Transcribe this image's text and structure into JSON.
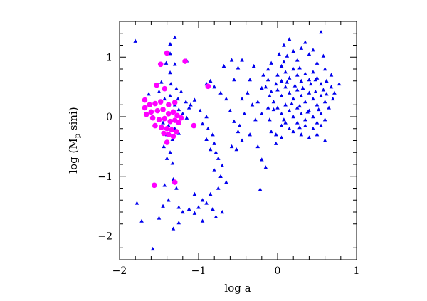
{
  "chart_data": {
    "type": "scatter",
    "title": "",
    "xlabel": "log a",
    "ylabel_main": "log (M",
    "ylabel_sub": "p",
    "ylabel_tail": " sini)",
    "xlim": [
      -2,
      1
    ],
    "ylim": [
      -2.4,
      1.6
    ],
    "x_ticks": [
      -2,
      -1,
      0,
      1
    ],
    "x_tick_labels": [
      "−2",
      "−1",
      "0",
      "1"
    ],
    "y_ticks": [
      -2,
      -1,
      0,
      1
    ],
    "y_tick_labels": [
      "−2",
      "−1",
      "0",
      "1"
    ],
    "grid": false,
    "legend": "none",
    "series": [
      {
        "marker": "triangle",
        "color": "#0000ee",
        "points": [
          [
            -1.8,
            1.27
          ],
          [
            -1.36,
            1.22
          ],
          [
            -1.3,
            1.33
          ],
          [
            -1.36,
            1.06
          ],
          [
            -1.41,
            0.9
          ],
          [
            -1.3,
            0.88
          ],
          [
            -1.15,
            0.94
          ],
          [
            -1.36,
            0.74
          ],
          [
            -1.47,
            0.58
          ],
          [
            -1.5,
            0.42
          ],
          [
            -1.63,
            0.38
          ],
          [
            -1.36,
            0.35
          ],
          [
            -1.26,
            0.3
          ],
          [
            -1.16,
            0.25
          ],
          [
            -1.12,
            0.15
          ],
          [
            -1.35,
            0.55
          ],
          [
            -1.28,
            0.47
          ],
          [
            -1.22,
            0.42
          ],
          [
            -1.43,
            0.3
          ],
          [
            -1.3,
            0.2
          ],
          [
            -1.25,
            0.12
          ],
          [
            -1.2,
            0.05
          ],
          [
            -1.15,
            -0.02
          ],
          [
            -1.45,
            -0.1
          ],
          [
            -1.38,
            -0.15
          ],
          [
            -1.3,
            -0.2
          ],
          [
            -1.25,
            -0.28
          ],
          [
            -1.4,
            -0.3
          ],
          [
            -1.33,
            -0.38
          ],
          [
            -1.44,
            -0.5
          ],
          [
            -1.36,
            -0.6
          ],
          [
            -1.4,
            -0.7
          ],
          [
            -1.33,
            -0.78
          ],
          [
            -1.43,
            -1.15
          ],
          [
            -1.32,
            -1.05
          ],
          [
            -1.28,
            -1.2
          ],
          [
            -1.38,
            -1.4
          ],
          [
            -1.45,
            -1.5
          ],
          [
            -1.25,
            -1.52
          ],
          [
            -1.2,
            -1.6
          ],
          [
            -1.12,
            -1.55
          ],
          [
            -1.05,
            -1.62
          ],
          [
            -1.0,
            -1.52
          ],
          [
            -0.95,
            -1.75
          ],
          [
            -1.25,
            -1.78
          ],
          [
            -1.32,
            -1.88
          ],
          [
            -1.5,
            -1.7
          ],
          [
            -1.78,
            -1.45
          ],
          [
            -1.72,
            -1.75
          ],
          [
            -1.58,
            -2.22
          ],
          [
            -1.1,
            0.2
          ],
          [
            -1.05,
            0.28
          ],
          [
            -0.98,
            0.1
          ],
          [
            -0.9,
            0.0
          ],
          [
            -0.95,
            -0.12
          ],
          [
            -0.88,
            -0.2
          ],
          [
            -0.82,
            -0.3
          ],
          [
            -0.9,
            -0.38
          ],
          [
            -0.8,
            -0.45
          ],
          [
            -0.85,
            -0.55
          ],
          [
            -0.78,
            -0.6
          ],
          [
            -0.75,
            -0.7
          ],
          [
            -0.7,
            -0.82
          ],
          [
            -0.8,
            -0.9
          ],
          [
            -0.72,
            -1.0
          ],
          [
            -0.65,
            -1.1
          ],
          [
            -0.75,
            -1.2
          ],
          [
            -0.85,
            -1.3
          ],
          [
            -0.9,
            -1.45
          ],
          [
            -0.82,
            -1.55
          ],
          [
            -0.7,
            -1.6
          ],
          [
            -0.78,
            -1.68
          ],
          [
            -0.95,
            -1.4
          ],
          [
            -1.05,
            -1.3
          ],
          [
            -0.9,
            0.55
          ],
          [
            -0.85,
            0.6
          ],
          [
            -0.8,
            0.5
          ],
          [
            -0.72,
            0.4
          ],
          [
            -0.65,
            0.3
          ],
          [
            -0.6,
            0.1
          ],
          [
            -0.55,
            -0.08
          ],
          [
            -0.5,
            -0.25
          ],
          [
            -0.58,
            -0.5
          ],
          [
            -0.52,
            -0.55
          ],
          [
            -0.45,
            -0.4
          ],
          [
            -0.48,
            -0.15
          ],
          [
            -0.42,
            0.05
          ],
          [
            -0.45,
            0.3
          ],
          [
            -0.55,
            0.62
          ],
          [
            -0.5,
            0.82
          ],
          [
            -0.45,
            0.95
          ],
          [
            -0.58,
            0.95
          ],
          [
            -0.68,
            0.85
          ],
          [
            -0.35,
            0.62
          ],
          [
            -0.3,
            0.85
          ],
          [
            -0.38,
            0.4
          ],
          [
            -0.32,
            0.2
          ],
          [
            -0.28,
            -0.05
          ],
          [
            -0.35,
            -0.3
          ],
          [
            -0.25,
            -0.5
          ],
          [
            -0.2,
            -0.72
          ],
          [
            -0.15,
            -0.85
          ],
          [
            -0.22,
            -1.22
          ],
          [
            -0.18,
            0.7
          ],
          [
            -0.12,
            0.8
          ],
          [
            -0.08,
            0.9
          ],
          [
            -0.15,
            0.5
          ],
          [
            -0.1,
            0.35
          ],
          [
            -0.05,
            0.12
          ],
          [
            -0.1,
            -0.05
          ],
          [
            -0.08,
            -0.25
          ],
          [
            -0.02,
            -0.3
          ],
          [
            -0.12,
            0.62
          ],
          [
            -0.2,
            0.48
          ],
          [
            -0.25,
            0.25
          ],
          [
            -0.2,
            0.05
          ],
          [
            0.02,
            1.05
          ],
          [
            0.05,
            0.85
          ],
          [
            0.08,
            1.2
          ],
          [
            0.12,
            1.02
          ],
          [
            0.15,
            1.3
          ],
          [
            0.2,
            1.1
          ],
          [
            0.25,
            0.95
          ],
          [
            0.3,
            1.15
          ],
          [
            0.35,
            1.25
          ],
          [
            0.4,
            1.05
          ],
          [
            0.45,
            1.12
          ],
          [
            0.5,
            0.9
          ],
          [
            0.55,
            1.42
          ],
          [
            0.58,
            1.02
          ],
          [
            0.6,
            0.8
          ],
          [
            0.0,
            0.7
          ],
          [
            0.05,
            0.6
          ],
          [
            0.1,
            0.75
          ],
          [
            0.15,
            0.65
          ],
          [
            0.2,
            0.8
          ],
          [
            0.25,
            0.7
          ],
          [
            0.3,
            0.6
          ],
          [
            0.35,
            0.72
          ],
          [
            0.4,
            0.62
          ],
          [
            0.45,
            0.75
          ],
          [
            0.5,
            0.65
          ],
          [
            0.55,
            0.55
          ],
          [
            0.62,
            0.6
          ],
          [
            0.68,
            0.5
          ],
          [
            0.72,
            0.4
          ],
          [
            0.78,
            0.55
          ],
          [
            0.0,
            0.45
          ],
          [
            0.05,
            0.35
          ],
          [
            0.1,
            0.5
          ],
          [
            0.15,
            0.4
          ],
          [
            0.2,
            0.3
          ],
          [
            0.25,
            0.45
          ],
          [
            0.3,
            0.35
          ],
          [
            0.35,
            0.25
          ],
          [
            0.4,
            0.4
          ],
          [
            0.45,
            0.3
          ],
          [
            0.5,
            0.2
          ],
          [
            0.55,
            0.35
          ],
          [
            0.6,
            0.25
          ],
          [
            0.65,
            0.15
          ],
          [
            0.7,
            0.3
          ],
          [
            -0.05,
            0.25
          ],
          [
            0.0,
            0.15
          ],
          [
            0.05,
            0.05
          ],
          [
            0.1,
            0.2
          ],
          [
            0.15,
            0.1
          ],
          [
            0.2,
            0.0
          ],
          [
            0.25,
            0.15
          ],
          [
            0.3,
            0.05
          ],
          [
            0.35,
            -0.05
          ],
          [
            0.4,
            0.1
          ],
          [
            0.45,
            0.0
          ],
          [
            0.5,
            -0.1
          ],
          [
            0.55,
            0.05
          ],
          [
            0.6,
            -0.05
          ],
          [
            0.05,
            -0.15
          ],
          [
            0.1,
            -0.1
          ],
          [
            0.15,
            -0.2
          ],
          [
            0.2,
            -0.25
          ],
          [
            0.25,
            -0.1
          ],
          [
            0.3,
            -0.3
          ],
          [
            0.35,
            -0.15
          ],
          [
            0.4,
            -0.35
          ],
          [
            0.45,
            -0.2
          ],
          [
            0.5,
            -0.3
          ],
          [
            0.55,
            -0.15
          ],
          [
            0.6,
            -0.4
          ],
          [
            -0.02,
            -0.45
          ],
          [
            0.05,
            -0.35
          ],
          [
            0.12,
            0.58
          ],
          [
            0.18,
            0.22
          ],
          [
            0.22,
            0.52
          ],
          [
            0.28,
            0.18
          ],
          [
            0.32,
            0.48
          ],
          [
            0.38,
            0.08
          ],
          [
            0.42,
            0.55
          ],
          [
            0.48,
            0.42
          ],
          [
            0.52,
            0.12
          ],
          [
            0.58,
            0.45
          ],
          [
            0.62,
            0.38
          ],
          [
            -0.08,
            0.42
          ],
          [
            -0.12,
            0.15
          ],
          [
            0.08,
            -0.05
          ],
          [
            0.28,
            -0.18
          ],
          [
            0.48,
            0.62
          ],
          [
            0.68,
            0.7
          ],
          [
            0.08,
            0.92
          ],
          [
            0.28,
            0.82
          ],
          [
            -0.02,
            0.55
          ]
        ]
      },
      {
        "marker": "circle",
        "color": "#ff00ff",
        "points": [
          [
            -1.4,
            1.07
          ],
          [
            -1.48,
            0.88
          ],
          [
            -1.17,
            0.93
          ],
          [
            -0.88,
            0.51
          ],
          [
            -1.53,
            0.53
          ],
          [
            -1.43,
            0.47
          ],
          [
            -1.68,
            0.28
          ],
          [
            -1.62,
            0.2
          ],
          [
            -1.55,
            0.22
          ],
          [
            -1.48,
            0.25
          ],
          [
            -1.38,
            0.2
          ],
          [
            -1.3,
            0.24
          ],
          [
            -1.68,
            0.15
          ],
          [
            -1.6,
            0.08
          ],
          [
            -1.52,
            0.1
          ],
          [
            -1.45,
            0.12
          ],
          [
            -1.38,
            0.05
          ],
          [
            -1.32,
            0.08
          ],
          [
            -1.27,
            0.02
          ],
          [
            -1.22,
            -0.02
          ],
          [
            -1.66,
            0.04
          ],
          [
            -1.58,
            -0.02
          ],
          [
            -1.5,
            -0.05
          ],
          [
            -1.43,
            -0.03
          ],
          [
            -1.36,
            -0.08
          ],
          [
            -1.3,
            -0.06
          ],
          [
            -1.25,
            -0.1
          ],
          [
            -1.06,
            -0.15
          ],
          [
            -1.55,
            -0.15
          ],
          [
            -1.47,
            -0.18
          ],
          [
            -1.4,
            -0.2
          ],
          [
            -1.34,
            -0.22
          ],
          [
            -1.28,
            -0.25
          ],
          [
            -1.44,
            -0.28
          ],
          [
            -1.38,
            -0.3
          ],
          [
            -1.32,
            -0.33
          ],
          [
            -1.4,
            -0.43
          ],
          [
            -1.56,
            -1.15
          ],
          [
            -1.3,
            -1.1
          ]
        ]
      }
    ]
  }
}
